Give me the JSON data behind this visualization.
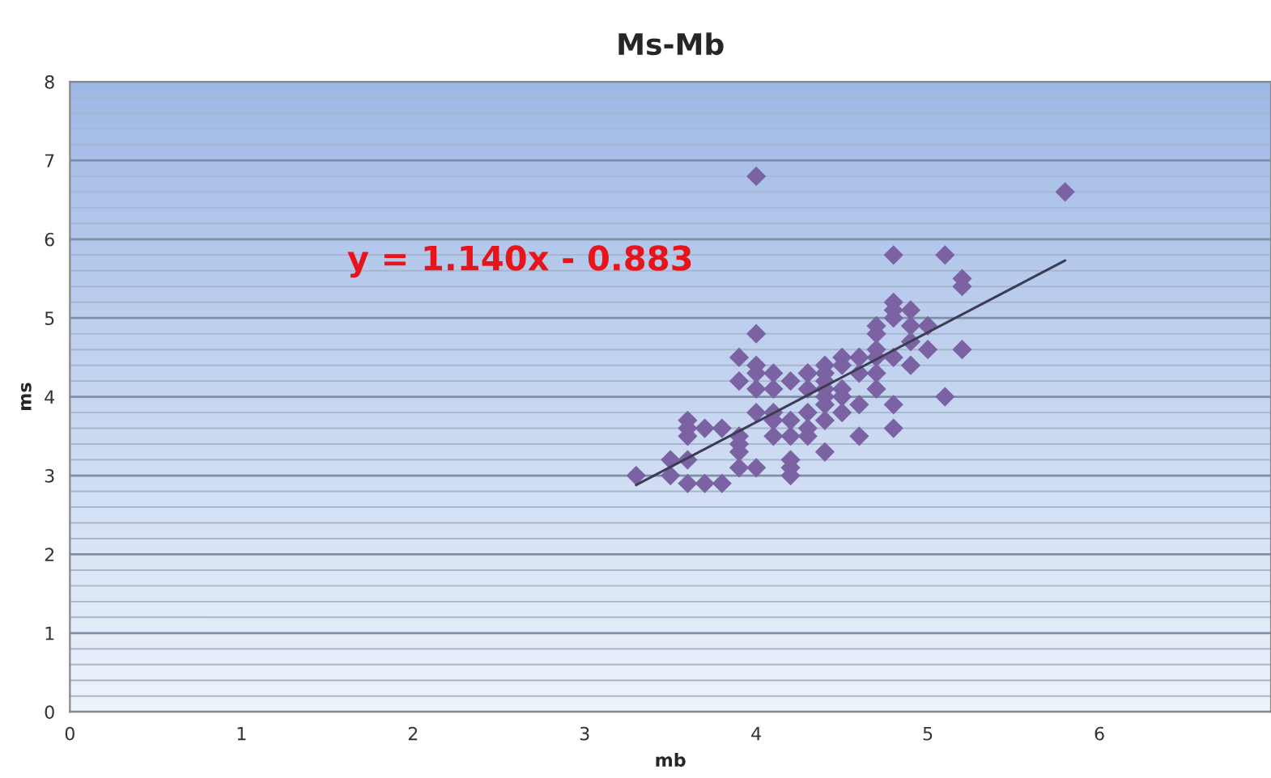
{
  "chart_data": {
    "type": "scatter",
    "title": "Ms-Mb",
    "xlabel": "mb",
    "ylabel": "ms",
    "series": [
      {
        "color": "#7b62a3",
        "marker": "diamond",
        "x": [
          4.0,
          5.8,
          4.8,
          5.1,
          5.2,
          5.2,
          4.8,
          4.8,
          4.8,
          4.9,
          4.9,
          5.0,
          4.7,
          4.7,
          4.0,
          5.2,
          5.0,
          4.9,
          4.8,
          4.7,
          4.7,
          4.6,
          4.5,
          4.4,
          4.3,
          3.9,
          4.0,
          4.9,
          4.0,
          4.1,
          4.1,
          3.9,
          4.0,
          4.2,
          4.3,
          4.3,
          4.4,
          4.4,
          4.4,
          4.4,
          4.4,
          4.5,
          4.5,
          4.5,
          4.5,
          4.6,
          4.6,
          4.6,
          4.7,
          4.7,
          4.8,
          4.8,
          5.1,
          4.6,
          4.4,
          4.1,
          4.1,
          4.1,
          4.2,
          4.2,
          4.3,
          4.3,
          4.3,
          4.4,
          4.0,
          4.2,
          4.2,
          4.2,
          3.9,
          4.0,
          3.9,
          3.9,
          3.9,
          3.8,
          3.7,
          3.6,
          3.6,
          3.6,
          3.5,
          3.6,
          3.5,
          3.3,
          3.6,
          3.7,
          3.8
        ],
        "values": [
          6.8,
          6.6,
          5.8,
          5.8,
          5.5,
          5.4,
          5.2,
          5.1,
          5.0,
          5.1,
          4.9,
          4.9,
          4.9,
          4.8,
          4.8,
          4.6,
          4.6,
          4.7,
          4.5,
          4.6,
          4.5,
          4.5,
          4.5,
          4.4,
          4.3,
          4.5,
          4.4,
          4.4,
          4.3,
          4.3,
          4.1,
          4.2,
          4.1,
          4.2,
          4.3,
          4.1,
          4.3,
          4.2,
          4.1,
          4.0,
          3.9,
          4.4,
          4.1,
          4.0,
          3.8,
          4.3,
          3.9,
          3.5,
          4.3,
          4.1,
          3.9,
          3.6,
          4.0,
          4.5,
          3.3,
          3.8,
          3.7,
          3.5,
          3.7,
          3.5,
          3.8,
          3.6,
          3.5,
          3.7,
          3.8,
          3.2,
          3.1,
          3.0,
          3.1,
          3.1,
          3.5,
          3.4,
          3.3,
          3.6,
          3.6,
          3.7,
          3.6,
          3.5,
          3.2,
          3.2,
          3.0,
          3.0,
          2.9,
          2.9,
          2.9
        ]
      },
      {
        "type": "line",
        "color": "#3c3c55",
        "line_style": "solid",
        "x": [
          3.3,
          5.8
        ],
        "values": [
          2.88,
          5.73
        ]
      }
    ],
    "annotations": [
      "y = 1.140x - 0.883"
    ],
    "xlim": [
      0,
      7
    ],
    "ylim": [
      0,
      8
    ],
    "xticks": [
      0,
      1,
      2,
      3,
      4,
      5,
      6
    ],
    "yticks": [
      0,
      {
        "value": 0.2,
        "label": null
      },
      {
        "value": 0.4,
        "label": null
      },
      {
        "value": 0.6,
        "label": null
      },
      {
        "value": 0.8,
        "label": null
      },
      1,
      {
        "value": 1.2,
        "label": null
      },
      {
        "value": 1.4,
        "label": null
      },
      {
        "value": 1.6,
        "label": null
      },
      {
        "value": 1.8,
        "label": null
      },
      2,
      {
        "value": 2.2,
        "label": null
      },
      {
        "value": 2.4,
        "label": null
      },
      {
        "value": 2.6,
        "label": null
      },
      {
        "value": 2.8,
        "label": null
      },
      3,
      {
        "value": 3.2,
        "label": null
      },
      {
        "value": 3.4,
        "label": null
      },
      {
        "value": 3.6,
        "label": null
      },
      {
        "value": 3.8,
        "label": null
      },
      4,
      {
        "value": 4.2,
        "label": null
      },
      {
        "value": 4.4,
        "label": null
      },
      {
        "value": 4.6,
        "label": null
      },
      {
        "value": 4.8,
        "label": null
      },
      5,
      {
        "value": 5.2,
        "label": null
      },
      {
        "value": 5.4,
        "label": null
      },
      {
        "value": 5.6,
        "label": null
      },
      {
        "value": 5.8,
        "label": null
      },
      6,
      {
        "value": 6.2,
        "label": null
      },
      {
        "value": 6.4,
        "label": null
      },
      {
        "value": 6.6,
        "label": null
      },
      {
        "value": 6.8,
        "label": null
      },
      7,
      {
        "value": 7.2,
        "label": null
      },
      {
        "value": 7.4,
        "label": null
      },
      {
        "value": 7.6,
        "label": null
      },
      {
        "value": 7.8,
        "label": null
      },
      8
    ],
    "grid": "y",
    "legend": false
  }
}
